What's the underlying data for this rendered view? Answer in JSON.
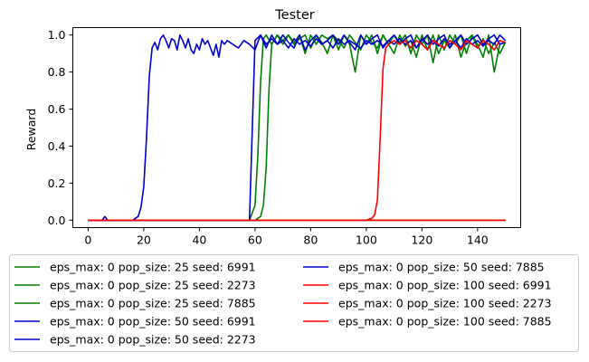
{
  "chart_data": {
    "type": "line",
    "title": "Tester",
    "xlabel": "",
    "ylabel": "Reward",
    "xlim": [
      -5.5,
      155.5
    ],
    "ylim": [
      -0.04,
      1.04
    ],
    "xticks": [
      0,
      20,
      40,
      60,
      80,
      100,
      120,
      140
    ],
    "yticks": [
      0.0,
      0.2,
      0.4,
      0.6,
      0.8,
      1.0
    ],
    "xtick_labels": [
      "0",
      "20",
      "40",
      "60",
      "80",
      "100",
      "120",
      "140"
    ],
    "ytick_labels": [
      "0.0",
      "0.2",
      "0.4",
      "0.6",
      "0.8",
      "1.0"
    ],
    "grid": false,
    "legend_position": "below the plot, two columns",
    "x_range": [
      0,
      150
    ],
    "series": [
      {
        "name": "eps_max: 0 pop_size: 25 seed: 6991",
        "color": "#008000",
        "points": [
          [
            0,
            0
          ],
          [
            58,
            0
          ],
          [
            60,
            0.08
          ],
          [
            61,
            0.35
          ],
          [
            62,
            0.75
          ],
          [
            63,
            0.98
          ],
          [
            64,
            1.0
          ],
          [
            66,
            0.95
          ],
          [
            68,
            1.0
          ],
          [
            70,
            0.95
          ],
          [
            72,
            1.0
          ],
          [
            74,
            0.96
          ],
          [
            76,
            1.0
          ],
          [
            78,
            0.9
          ],
          [
            80,
            1.0
          ],
          [
            82,
            0.95
          ],
          [
            84,
            1.0
          ],
          [
            86,
            0.98
          ],
          [
            88,
            1.0
          ],
          [
            90,
            0.92
          ],
          [
            92,
            1.0
          ],
          [
            94,
            0.95
          ],
          [
            96,
            0.8
          ],
          [
            98,
            1.0
          ],
          [
            100,
            0.95
          ],
          [
            102,
            1.0
          ],
          [
            104,
            0.9
          ],
          [
            106,
            1.0
          ],
          [
            108,
            0.95
          ],
          [
            110,
            1.0
          ],
          [
            112,
            0.96
          ],
          [
            114,
            1.0
          ],
          [
            116,
            0.9
          ],
          [
            118,
            1.0
          ],
          [
            120,
            0.95
          ],
          [
            122,
            1.0
          ],
          [
            124,
            0.85
          ],
          [
            126,
            1.0
          ],
          [
            128,
            0.92
          ],
          [
            130,
            1.0
          ],
          [
            132,
            0.95
          ],
          [
            134,
            1.0
          ],
          [
            136,
            0.9
          ],
          [
            138,
            1.0
          ],
          [
            140,
            0.95
          ],
          [
            142,
            0.88
          ],
          [
            144,
            1.0
          ],
          [
            146,
            0.8
          ],
          [
            148,
            0.95
          ],
          [
            150,
            0.96
          ]
        ]
      },
      {
        "name": "eps_max: 0 pop_size: 25 seed: 2273",
        "color": "#008000",
        "points": [
          [
            0,
            0
          ],
          [
            60,
            0
          ],
          [
            62,
            0.02
          ],
          [
            63,
            0.08
          ],
          [
            64,
            0.28
          ],
          [
            65,
            0.7
          ],
          [
            66,
            0.95
          ],
          [
            68,
            1.0
          ],
          [
            70,
            0.97
          ],
          [
            72,
            1.0
          ],
          [
            74,
            0.95
          ],
          [
            76,
            0.98
          ],
          [
            78,
            1.0
          ],
          [
            80,
            0.93
          ],
          [
            82,
            1.0
          ],
          [
            84,
            0.96
          ],
          [
            86,
            0.9
          ],
          [
            88,
            1.0
          ],
          [
            90,
            0.97
          ],
          [
            92,
            0.93
          ],
          [
            94,
            1.0
          ],
          [
            96,
            0.96
          ],
          [
            98,
            0.92
          ],
          [
            100,
            1.0
          ],
          [
            102,
            0.96
          ],
          [
            104,
            0.93
          ],
          [
            106,
            1.0
          ],
          [
            108,
            0.95
          ],
          [
            110,
            0.9
          ],
          [
            112,
            1.0
          ],
          [
            114,
            0.94
          ],
          [
            116,
            0.97
          ],
          [
            118,
            0.88
          ],
          [
            120,
            1.0
          ],
          [
            122,
            0.92
          ],
          [
            124,
            1.0
          ],
          [
            126,
            0.9
          ],
          [
            128,
            0.97
          ],
          [
            130,
            0.93
          ],
          [
            132,
            1.0
          ],
          [
            134,
            0.88
          ],
          [
            136,
            0.97
          ],
          [
            138,
            1.0
          ],
          [
            140,
            0.93
          ],
          [
            142,
            0.98
          ],
          [
            144,
            0.9
          ],
          [
            146,
            0.96
          ],
          [
            148,
            0.9
          ],
          [
            150,
            0.96
          ]
        ]
      },
      {
        "name": "eps_max: 0 pop_size: 25 seed: 7885",
        "color": "#008000",
        "points": [
          [
            0,
            0
          ],
          [
            150,
            0
          ]
        ]
      },
      {
        "name": "eps_max: 0 pop_size: 50 seed: 6991",
        "color": "#0000cd",
        "points": [
          [
            0,
            0
          ],
          [
            16,
            0
          ],
          [
            18,
            0.02
          ],
          [
            19,
            0.07
          ],
          [
            20,
            0.18
          ],
          [
            21,
            0.45
          ],
          [
            22,
            0.78
          ],
          [
            23,
            0.93
          ],
          [
            24,
            0.96
          ],
          [
            25,
            0.92
          ],
          [
            26,
            0.98
          ],
          [
            27,
            1.0
          ],
          [
            28,
            0.97
          ],
          [
            29,
            0.93
          ],
          [
            30,
            0.98
          ],
          [
            31,
            0.97
          ],
          [
            32,
            0.92
          ],
          [
            33,
            1.0
          ],
          [
            34,
            0.97
          ],
          [
            35,
            0.93
          ],
          [
            36,
            0.98
          ],
          [
            37,
            0.92
          ],
          [
            38,
            0.9
          ],
          [
            39,
            0.95
          ],
          [
            40,
            0.92
          ],
          [
            41,
            0.98
          ],
          [
            42,
            0.95
          ],
          [
            43,
            0.97
          ],
          [
            44,
            0.93
          ],
          [
            45,
            0.89
          ],
          [
            46,
            0.95
          ],
          [
            47,
            0.88
          ],
          [
            48,
            0.97
          ],
          [
            49,
            0.95
          ],
          [
            50,
            0.97
          ],
          [
            52,
            0.95
          ],
          [
            54,
            0.93
          ],
          [
            56,
            0.97
          ],
          [
            58,
            0.95
          ],
          [
            60,
            0.92
          ],
          [
            62,
            1.0
          ],
          [
            64,
            0.95
          ],
          [
            66,
            0.98
          ],
          [
            68,
            0.95
          ],
          [
            70,
            0.97
          ],
          [
            72,
            0.93
          ],
          [
            74,
            0.98
          ],
          [
            76,
            0.95
          ],
          [
            78,
            0.97
          ],
          [
            80,
            0.94
          ],
          [
            82,
            0.98
          ],
          [
            84,
            0.95
          ],
          [
            86,
            0.97
          ],
          [
            88,
            0.93
          ],
          [
            90,
            0.98
          ],
          [
            92,
            0.95
          ],
          [
            94,
            0.97
          ],
          [
            96,
            0.95
          ],
          [
            98,
            0.93
          ],
          [
            100,
            0.97
          ],
          [
            102,
            0.95
          ],
          [
            104,
            0.97
          ],
          [
            106,
            0.94
          ],
          [
            108,
            0.97
          ],
          [
            110,
            0.95
          ],
          [
            112,
            0.98
          ],
          [
            114,
            0.95
          ],
          [
            116,
            0.97
          ],
          [
            118,
            0.93
          ],
          [
            120,
            0.98
          ],
          [
            122,
            0.95
          ],
          [
            124,
            0.97
          ],
          [
            126,
            0.94
          ],
          [
            128,
            0.98
          ],
          [
            130,
            0.95
          ],
          [
            132,
            0.97
          ],
          [
            134,
            0.93
          ],
          [
            136,
            0.98
          ],
          [
            138,
            0.95
          ],
          [
            140,
            0.97
          ],
          [
            142,
            0.94
          ],
          [
            144,
            0.97
          ],
          [
            146,
            0.95
          ],
          [
            148,
            1.0
          ],
          [
            150,
            0.97
          ]
        ]
      },
      {
        "name": "eps_max: 0 pop_size: 50 seed: 2273",
        "color": "#0000cd",
        "points": [
          [
            0,
            0
          ],
          [
            5,
            0
          ],
          [
            6,
            0.02
          ],
          [
            7,
            0
          ],
          [
            150,
            0
          ]
        ]
      },
      {
        "name": "eps_max: 0 pop_size: 50 seed: 7885",
        "color": "#0000cd",
        "points": [
          [
            0,
            0
          ],
          [
            58,
            0
          ],
          [
            60,
            0.97
          ],
          [
            62,
            1.0
          ],
          [
            64,
            0.93
          ],
          [
            66,
            1.0
          ],
          [
            68,
            0.95
          ],
          [
            70,
            1.0
          ],
          [
            72,
            0.96
          ],
          [
            74,
            0.93
          ],
          [
            76,
            1.0
          ],
          [
            78,
            0.92
          ],
          [
            80,
            0.97
          ],
          [
            82,
            1.0
          ],
          [
            84,
            0.95
          ],
          [
            86,
            0.97
          ],
          [
            88,
            1.0
          ],
          [
            90,
            0.95
          ],
          [
            92,
            1.0
          ],
          [
            94,
            0.96
          ],
          [
            96,
            0.92
          ],
          [
            98,
            1.0
          ],
          [
            100,
            0.95
          ],
          [
            102,
            0.98
          ],
          [
            104,
            1.0
          ],
          [
            106,
            0.93
          ],
          [
            108,
            0.97
          ],
          [
            110,
            1.0
          ],
          [
            112,
            0.95
          ],
          [
            114,
            0.98
          ],
          [
            116,
            1.0
          ],
          [
            118,
            0.93
          ],
          [
            120,
            0.97
          ],
          [
            122,
            1.0
          ],
          [
            124,
            0.95
          ],
          [
            126,
            0.98
          ],
          [
            128,
            1.0
          ],
          [
            130,
            0.93
          ],
          [
            132,
            0.97
          ],
          [
            134,
            1.0
          ],
          [
            136,
            0.95
          ],
          [
            138,
            0.98
          ],
          [
            140,
            1.0
          ],
          [
            142,
            0.95
          ],
          [
            144,
            0.98
          ],
          [
            146,
            1.0
          ],
          [
            148,
            0.95
          ],
          [
            150,
            0.96
          ]
        ]
      },
      {
        "name": "eps_max: 0 pop_size: 100 seed: 6991",
        "color": "#ff0000",
        "points": [
          [
            0,
            0
          ],
          [
            100,
            0
          ],
          [
            102,
            0.01
          ],
          [
            103,
            0.03
          ],
          [
            104,
            0.11
          ],
          [
            105,
            0.45
          ],
          [
            106,
            0.82
          ],
          [
            107,
            0.93
          ],
          [
            108,
            0.95
          ],
          [
            110,
            0.97
          ],
          [
            112,
            0.95
          ],
          [
            114,
            0.97
          ],
          [
            116,
            0.93
          ],
          [
            118,
            0.97
          ],
          [
            120,
            0.95
          ],
          [
            122,
            0.92
          ],
          [
            124,
            0.97
          ],
          [
            126,
            0.95
          ],
          [
            128,
            0.93
          ],
          [
            130,
            0.97
          ],
          [
            132,
            0.95
          ],
          [
            134,
            0.92
          ],
          [
            136,
            0.97
          ],
          [
            138,
            0.95
          ],
          [
            140,
            0.93
          ],
          [
            142,
            0.97
          ],
          [
            144,
            0.95
          ],
          [
            146,
            0.92
          ],
          [
            148,
            0.97
          ],
          [
            150,
            0.96
          ]
        ]
      },
      {
        "name": "eps_max: 0 pop_size: 100 seed: 2273",
        "color": "#ff0000",
        "points": [
          [
            0,
            0
          ],
          [
            150,
            0
          ]
        ]
      },
      {
        "name": "eps_max: 0 pop_size: 100 seed: 7885",
        "color": "#ff0000",
        "points": [
          [
            0,
            0
          ],
          [
            150,
            0
          ]
        ]
      }
    ]
  }
}
